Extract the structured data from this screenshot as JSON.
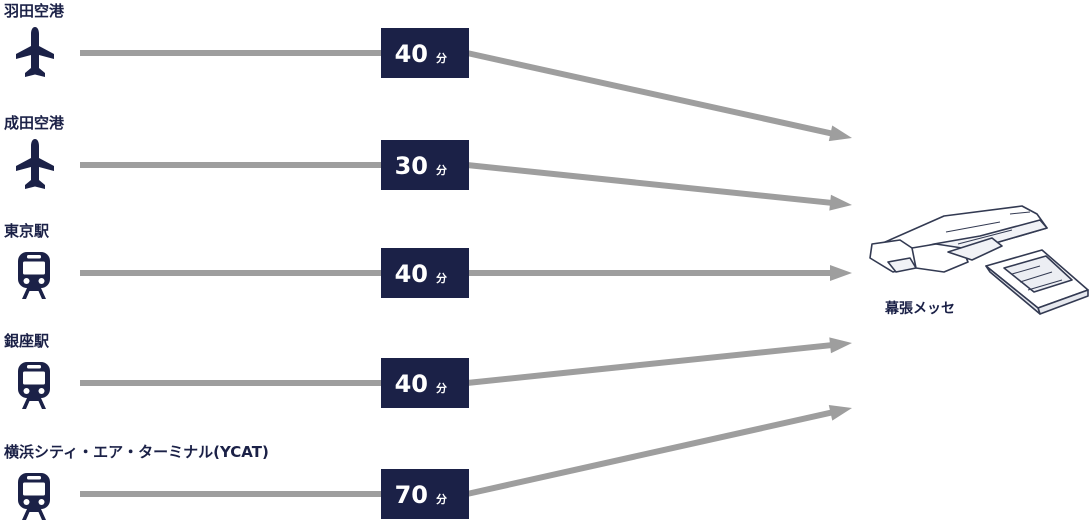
{
  "colors": {
    "navy": "#1b2147",
    "arrow": "#9e9e9e",
    "venue_stroke": "#333a52"
  },
  "destination": {
    "label": "幕張メッセ",
    "icon": "venue-building-icon"
  },
  "routes": [
    {
      "origin": "羽田空港",
      "icon": "airplane-icon",
      "minutes": "40",
      "unit": "分"
    },
    {
      "origin": "成田空港",
      "icon": "airplane-icon",
      "minutes": "30",
      "unit": "分"
    },
    {
      "origin": "東京駅",
      "icon": "train-icon",
      "minutes": "40",
      "unit": "分"
    },
    {
      "origin": "銀座駅",
      "icon": "train-icon",
      "minutes": "40",
      "unit": "分"
    },
    {
      "origin": "横浜シティ・エア・ターミナル(YCAT)",
      "icon": "train-icon",
      "minutes": "70",
      "unit": "分"
    }
  ]
}
